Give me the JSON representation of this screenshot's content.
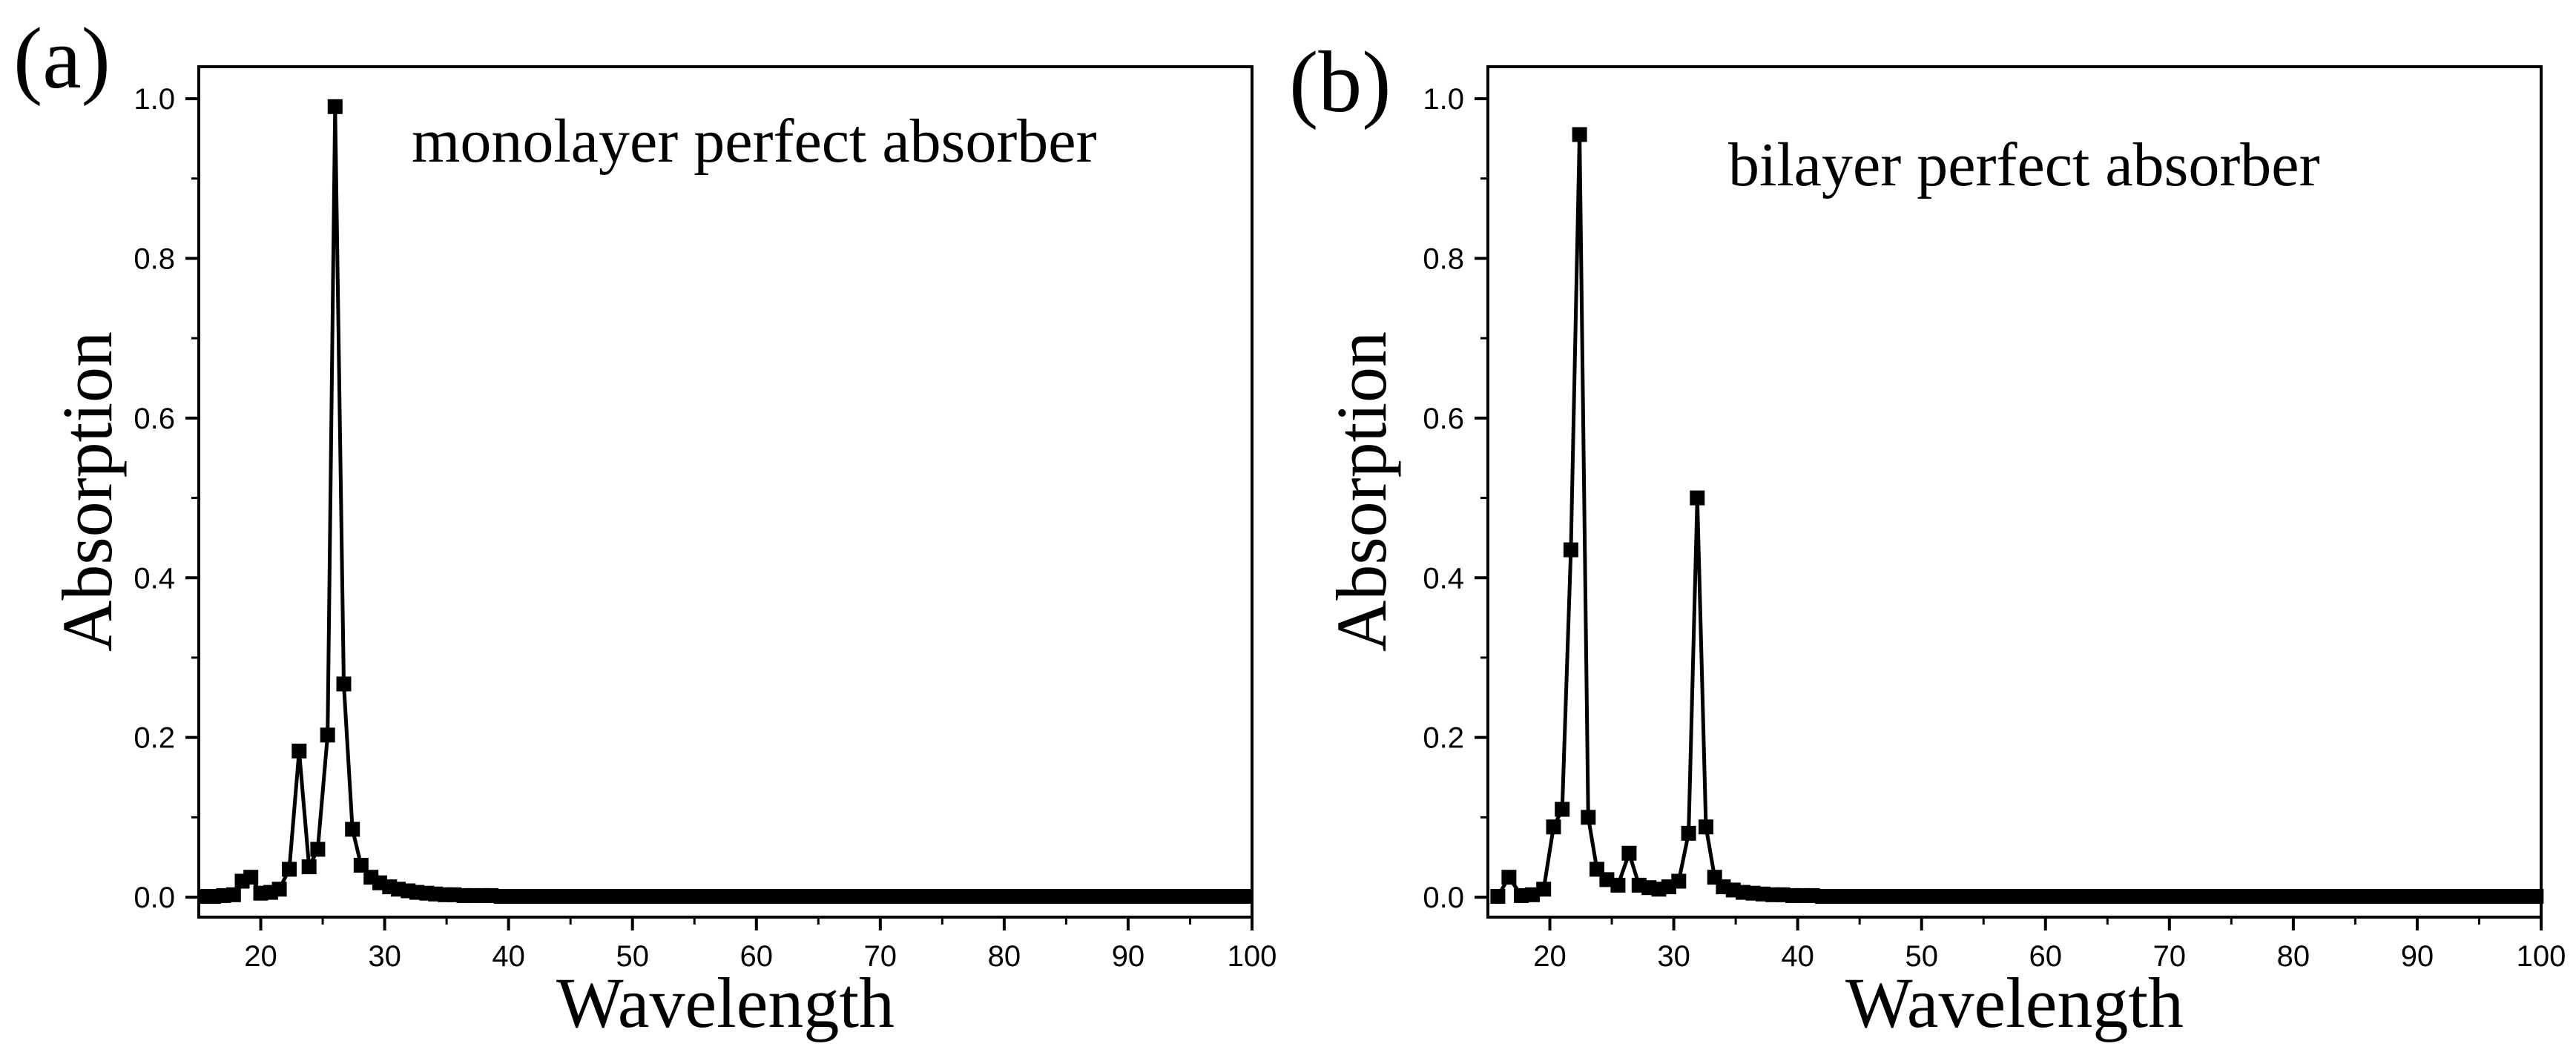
{
  "figure": {
    "panels": [
      "(a)",
      "(b)"
    ]
  },
  "colors": {
    "line": "#000000",
    "marker": "#000000",
    "axis": "#000000",
    "background": "#ffffff"
  },
  "chart_data": [
    {
      "type": "line",
      "panel_label": "(a)",
      "title": "",
      "annotation": "monolayer perfect absorber",
      "xlabel": "Wavelength",
      "ylabel": "Absorption",
      "xlim": [
        15,
        100
      ],
      "ylim": [
        -0.025,
        1.04
      ],
      "xticks": [
        20,
        30,
        40,
        50,
        60,
        70,
        80,
        90,
        100
      ],
      "yticks": [
        0.0,
        0.2,
        0.4,
        0.6,
        0.8,
        1.0
      ],
      "xtick_labels": [
        "20",
        "30",
        "40",
        "50",
        "60",
        "70",
        "80",
        "90",
        "100"
      ],
      "ytick_labels": [
        "0.0",
        "0.2",
        "0.4",
        "0.6",
        "0.8",
        "1.0"
      ],
      "series": [
        {
          "name": "monolayer",
          "marker": "square",
          "x": [
            15.5,
            16.2,
            17.0,
            17.8,
            18.5,
            19.2,
            20.0,
            20.8,
            21.5,
            22.3,
            23.1,
            23.9,
            24.6,
            25.4,
            26.0,
            26.7,
            27.4,
            28.1,
            28.9,
            29.6,
            30.4,
            31.1,
            31.9,
            32.6,
            33.4,
            34.1,
            34.9,
            35.6,
            36.4,
            37.1,
            37.9,
            38.6,
            39.4,
            40.1,
            40.9,
            41.6,
            42.4,
            43.1,
            43.9,
            44.6,
            45.4,
            46.1,
            46.9,
            47.6,
            48.4,
            49.1,
            49.9,
            50.6,
            51.4,
            52.1,
            52.9,
            53.6,
            54.4,
            55.1,
            55.9,
            56.6,
            57.4,
            58.1,
            58.9,
            59.6,
            60.4,
            61.1,
            61.9,
            62.6,
            63.4,
            64.1,
            64.9,
            65.6,
            66.4,
            67.1,
            67.9,
            68.6,
            69.4,
            70.1,
            70.9,
            71.6,
            72.4,
            73.1,
            73.9,
            74.6,
            75.4,
            76.1,
            76.9,
            77.6,
            78.4,
            79.1,
            79.9,
            80.6,
            81.4,
            82.1,
            82.9,
            83.6,
            84.4,
            85.1,
            85.9,
            86.6,
            87.4,
            88.1,
            88.9,
            89.6,
            90.4,
            91.1,
            91.9,
            92.6,
            93.4,
            94.1,
            94.9,
            95.6,
            96.4,
            97.1,
            97.9,
            98.6,
            99.4
          ],
          "y": [
            0.001,
            0.001,
            0.002,
            0.003,
            0.02,
            0.025,
            0.005,
            0.006,
            0.01,
            0.035,
            0.183,
            0.038,
            0.06,
            0.203,
            0.99,
            0.267,
            0.085,
            0.04,
            0.025,
            0.018,
            0.013,
            0.01,
            0.008,
            0.006,
            0.005,
            0.004,
            0.003,
            0.003,
            0.002,
            0.002,
            0.002,
            0.002,
            0.001,
            0.001,
            0.001,
            0.001,
            0.001,
            0.001,
            0.001,
            0.001,
            0.001,
            0.001,
            0.001,
            0.001,
            0.001,
            0.001,
            0.001,
            0.001,
            0.001,
            0.001,
            0.001,
            0.001,
            0.001,
            0.001,
            0.001,
            0.001,
            0.001,
            0.001,
            0.001,
            0.001,
            0.001,
            0.001,
            0.001,
            0.001,
            0.001,
            0.001,
            0.001,
            0.001,
            0.001,
            0.001,
            0.001,
            0.001,
            0.001,
            0.001,
            0.001,
            0.001,
            0.001,
            0.001,
            0.001,
            0.001,
            0.001,
            0.001,
            0.001,
            0.001,
            0.001,
            0.001,
            0.001,
            0.001,
            0.001,
            0.001,
            0.001,
            0.001,
            0.001,
            0.001,
            0.001,
            0.001,
            0.001,
            0.001,
            0.001,
            0.001,
            0.001,
            0.001,
            0.001,
            0.001,
            0.001,
            0.001,
            0.001,
            0.001,
            0.001,
            0.001,
            0.001,
            0.001,
            0.001
          ]
        }
      ]
    },
    {
      "type": "line",
      "panel_label": "(b)",
      "title": "",
      "annotation": "bilayer perfect absorber",
      "xlabel": "Wavelength",
      "ylabel": "Absorption",
      "xlim": [
        15,
        100
      ],
      "ylim": [
        -0.025,
        1.04
      ],
      "xticks": [
        20,
        30,
        40,
        50,
        60,
        70,
        80,
        90,
        100
      ],
      "yticks": [
        0.0,
        0.2,
        0.4,
        0.6,
        0.8,
        1.0
      ],
      "xtick_labels": [
        "20",
        "30",
        "40",
        "50",
        "60",
        "70",
        "80",
        "90",
        "100"
      ],
      "ytick_labels": [
        "0.0",
        "0.2",
        "0.4",
        "0.6",
        "0.8",
        "1.0"
      ],
      "series": [
        {
          "name": "bilayer",
          "marker": "square",
          "x": [
            15.8,
            16.7,
            17.7,
            18.6,
            19.5,
            20.3,
            21.0,
            21.7,
            22.4,
            23.1,
            23.8,
            24.6,
            25.5,
            26.4,
            27.2,
            28.0,
            28.8,
            29.6,
            30.4,
            31.2,
            31.9,
            32.6,
            33.3,
            34.0,
            34.8,
            35.6,
            36.4,
            37.2,
            38.0,
            38.8,
            39.6,
            40.4,
            41.2,
            42.0,
            42.8,
            43.6,
            44.4,
            45.2,
            46.0,
            46.8,
            47.6,
            48.4,
            49.2,
            50.0,
            50.8,
            51.6,
            52.4,
            53.2,
            54.0,
            54.8,
            55.6,
            56.4,
            57.2,
            58.0,
            58.8,
            59.6,
            60.4,
            61.2,
            62.0,
            62.8,
            63.6,
            64.4,
            65.2,
            66.0,
            66.8,
            67.6,
            68.4,
            69.2,
            70.0,
            70.8,
            71.6,
            72.4,
            73.2,
            74.0,
            74.8,
            75.6,
            76.4,
            77.2,
            78.0,
            78.8,
            79.6,
            80.4,
            81.2,
            82.0,
            82.8,
            83.6,
            84.4,
            85.2,
            86.0,
            86.8,
            87.6,
            88.4,
            89.2,
            90.0,
            90.8,
            91.6,
            92.4,
            93.2,
            94.0,
            94.8,
            95.6,
            96.4,
            97.2,
            98.0,
            98.8,
            99.6
          ],
          "y": [
            0.001,
            0.025,
            0.002,
            0.003,
            0.01,
            0.088,
            0.11,
            0.435,
            0.955,
            0.1,
            0.035,
            0.022,
            0.015,
            0.055,
            0.015,
            0.012,
            0.01,
            0.013,
            0.02,
            0.08,
            0.5,
            0.088,
            0.025,
            0.013,
            0.009,
            0.006,
            0.005,
            0.004,
            0.003,
            0.003,
            0.002,
            0.002,
            0.002,
            0.001,
            0.001,
            0.001,
            0.001,
            0.001,
            0.001,
            0.001,
            0.001,
            0.001,
            0.001,
            0.001,
            0.001,
            0.001,
            0.001,
            0.001,
            0.001,
            0.001,
            0.001,
            0.001,
            0.001,
            0.001,
            0.001,
            0.001,
            0.001,
            0.001,
            0.001,
            0.001,
            0.001,
            0.001,
            0.001,
            0.001,
            0.001,
            0.001,
            0.001,
            0.001,
            0.001,
            0.001,
            0.001,
            0.001,
            0.001,
            0.001,
            0.001,
            0.001,
            0.001,
            0.001,
            0.001,
            0.001,
            0.001,
            0.001,
            0.001,
            0.001,
            0.001,
            0.001,
            0.001,
            0.001,
            0.001,
            0.001,
            0.001,
            0.001,
            0.001,
            0.001,
            0.001,
            0.001,
            0.001,
            0.001,
            0.001,
            0.001,
            0.001,
            0.001,
            0.001,
            0.001,
            0.001,
            0.001
          ]
        }
      ]
    }
  ]
}
